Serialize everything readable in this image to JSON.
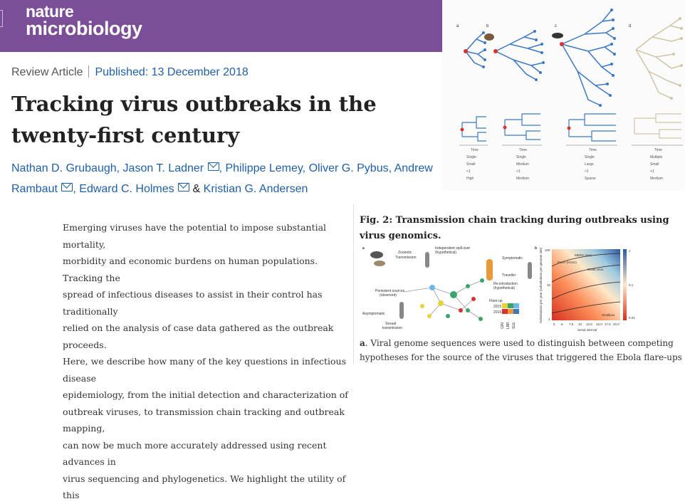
{
  "journal": {
    "name_line1": "nature",
    "name_line2": "microbiology"
  },
  "article": {
    "type": "Review Article",
    "published": "Published: 13 December 2018",
    "title": "Tracking virus outbreaks in the twenty-first century",
    "authors": [
      "Nathan D. Grubaugh",
      "Jason T. Ladner",
      "Philippe Lemey",
      "Oliver G. Pybus",
      "Andrew Rambaut",
      "Edward C. Holmes",
      "Kristian G. Andersen"
    ],
    "authors_amp": "&",
    "abstract_lines": [
      "Emerging viruses have the potential to impose substantial mortality,",
      "morbidity and economic burdens on human populations. Tracking the",
      "spread of infectious diseases to assist in their control has traditionally",
      "relied on the analysis of case data gathered as the outbreak proceeds.",
      "Here, we describe how many of the key questions in infectious disease",
      "epidemiology, from the initial detection and characterization of",
      "outbreak viruses, to transmission chain tracking and outbreak mapping,",
      "can now be much more accurately addressed using recent advances in",
      "virus sequencing and phylogenetics. We highlight the utility of this"
    ]
  },
  "figure": {
    "title": "Fig. 2: Transmission chain tracking during outbreaks using virus genomics.",
    "caption_label": "a",
    "caption_line1": ". Viral genome sequences were used to distinguish between competing",
    "caption_line2": "hypotheses for the source of the viruses that triggered the Ebola flare-ups in",
    "panel_a": {
      "letter": "a",
      "labels": [
        "Zoonotic",
        "Transmission",
        "Independent spill-over",
        "(hypothetical)",
        "Symptomatic",
        "Traveller",
        "Re-introduction",
        "(hypothetical)",
        "Persistent sources",
        "(observed)",
        "Flare-up",
        "2015",
        "2016",
        "Asymptomatic",
        "Sexual",
        "transmission"
      ],
      "legend_axis": [
        "GIN",
        "LBR",
        "SLE"
      ]
    },
    "panel_b": {
      "letter": "b",
      "y_label": "Substitutions per year (substitutions per genome site)",
      "x_label": "Serial interval",
      "y_ticks": [
        "100",
        "10",
        "1"
      ],
      "x_ticks": [
        "5",
        "6",
        "7.5",
        "10",
        "12.5",
        "15.0",
        "17.5",
        "20.0"
      ],
      "scale_ticks": [
        "1",
        "0.1",
        "0.01"
      ],
      "annotations": [
        "MERS virus",
        "FLUA (H1N1)",
        "Ebola virus",
        "Smallpox"
      ]
    }
  },
  "tree_panel": {
    "panel_letters": [
      "a",
      "b",
      "c",
      "d"
    ],
    "time_label": "Time",
    "row_labels": [
      [
        "Single",
        "Single",
        "Single",
        "Multiple"
      ],
      [
        "Small",
        "Medium",
        "Large",
        "Small"
      ],
      [
        "<1",
        "<1",
        "<1",
        "<1"
      ],
      [
        "High",
        "Medium",
        "Sparse",
        "Medium"
      ]
    ]
  },
  "colors": {
    "brand": "#7b4f97",
    "link": "#1f5fa8",
    "text": "#222222",
    "tree": "#3b78c2",
    "root": "#d9322f"
  }
}
